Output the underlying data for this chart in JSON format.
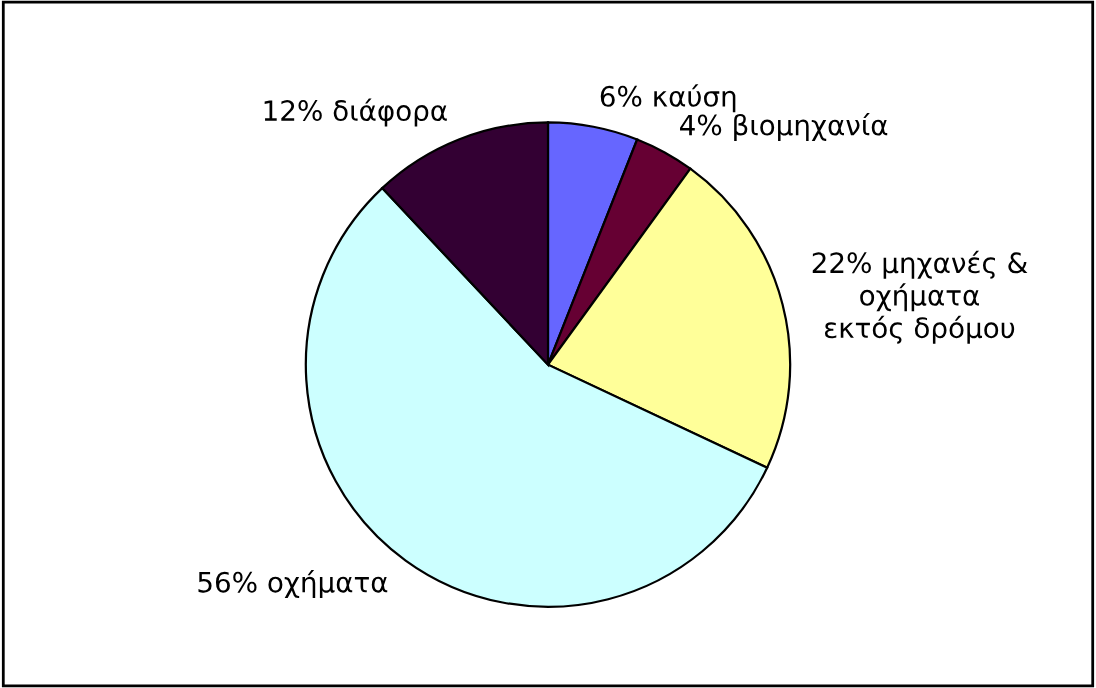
{
  "chart_data": {
    "type": "pie",
    "categories": [
      "καύση",
      "βιομηχανία",
      "μηχανές &\nοχήματα\nεκτός δρόμου",
      "οχήματα",
      "διάφορα"
    ],
    "values": [
      6,
      4,
      22,
      56,
      12
    ],
    "value_labels": [
      "6%",
      "4%",
      "22%",
      "56%",
      "12%"
    ],
    "colors": [
      "#6666ff",
      "#660033",
      "#ffff99",
      "#ccffff",
      "#330033"
    ]
  }
}
